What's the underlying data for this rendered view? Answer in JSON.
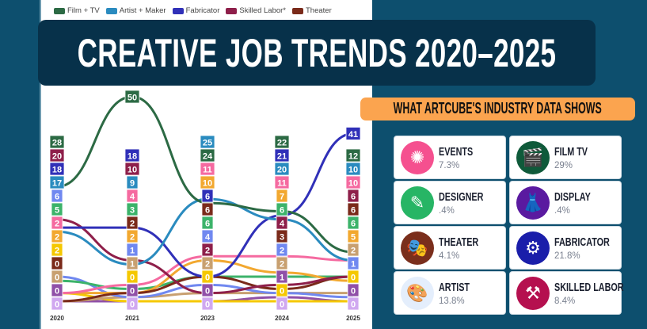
{
  "title": "CREATIVE JOB TRENDS 2020–2025",
  "subtitle": "WHAT ARTCUBE'S INDUSTRY DATA SHOWS",
  "cards": [
    {
      "name": "EVENTS",
      "pct": "7.3%",
      "icon": "disco-ball-icon",
      "color": "#f5508f",
      "glyph": "✺"
    },
    {
      "name": "FILM TV",
      "pct": "29%",
      "icon": "clapperboard-icon",
      "color": "#0f5a3a",
      "glyph": "🎬"
    },
    {
      "name": "DESIGNER",
      "pct": ".4%",
      "icon": "design-tools-icon",
      "color": "#27b565",
      "glyph": "✎"
    },
    {
      "name": "DISPLAY",
      "pct": ".4%",
      "icon": "mannequin-display-icon",
      "color": "#5a1aa0",
      "glyph": "👗"
    },
    {
      "name": "THEATER",
      "pct": "4.1%",
      "icon": "theater-masks-icon",
      "color": "#7a2e1c",
      "glyph": "🎭"
    },
    {
      "name": "FABRICATOR",
      "pct": "21.8%",
      "icon": "3d-printer-icon",
      "color": "#1a1eaa",
      "glyph": "⚙"
    },
    {
      "name": "ARTIST",
      "pct": "13.8%",
      "icon": "paint-palette-icon",
      "color": "#e4eefc",
      "glyph": "🎨"
    },
    {
      "name": "SKILLED LABOR",
      "pct": "8.4%",
      "icon": "welder-icon",
      "color": "#b5104f",
      "glyph": "⚒"
    }
  ],
  "chart_data": {
    "type": "line",
    "categories": [
      "2020",
      "2021",
      "2023",
      "2024",
      "2025"
    ],
    "ylim": [
      0,
      50
    ],
    "grid": false,
    "legend_placement": "top-left",
    "series": [
      {
        "name": "Film + TV",
        "color": "#2c6a44",
        "values": [
          28,
          50,
          24,
          22,
          12
        ]
      },
      {
        "name": "Artist + Maker",
        "color": "#2a8bbf",
        "values": [
          17,
          9,
          25,
          20,
          10
        ]
      },
      {
        "name": "Fabricator",
        "color": "#3030b8",
        "values": [
          18,
          18,
          6,
          21,
          41
        ]
      },
      {
        "name": "Skilled Labor*",
        "color": "#8e1f4a",
        "values": [
          20,
          10,
          2,
          4,
          6
        ]
      },
      {
        "name": "Theater",
        "color": "#7a2a1a",
        "values": [
          0,
          2,
          6,
          3,
          6
        ]
      },
      {
        "color": "#f56aa0",
        "values": [
          2,
          4,
          11,
          11,
          10
        ]
      },
      {
        "color": "#f2a830",
        "values": [
          2,
          2,
          10,
          7,
          5
        ]
      },
      {
        "color": "#3cb36a",
        "values": [
          5,
          3,
          6,
          6,
          6
        ]
      },
      {
        "color": "#7088f0",
        "values": [
          6,
          1,
          4,
          2,
          1
        ]
      },
      {
        "color": "#c8a070",
        "values": [
          0,
          1,
          2,
          2,
          2
        ]
      },
      {
        "color": "#f5c800",
        "values": [
          2,
          0,
          0,
          0,
          0
        ]
      },
      {
        "color": "#9050a8",
        "values": [
          0,
          0,
          0,
          1,
          0
        ]
      },
      {
        "color": "#d0a8f0",
        "values": [
          0,
          0,
          0,
          0,
          0
        ]
      }
    ]
  }
}
